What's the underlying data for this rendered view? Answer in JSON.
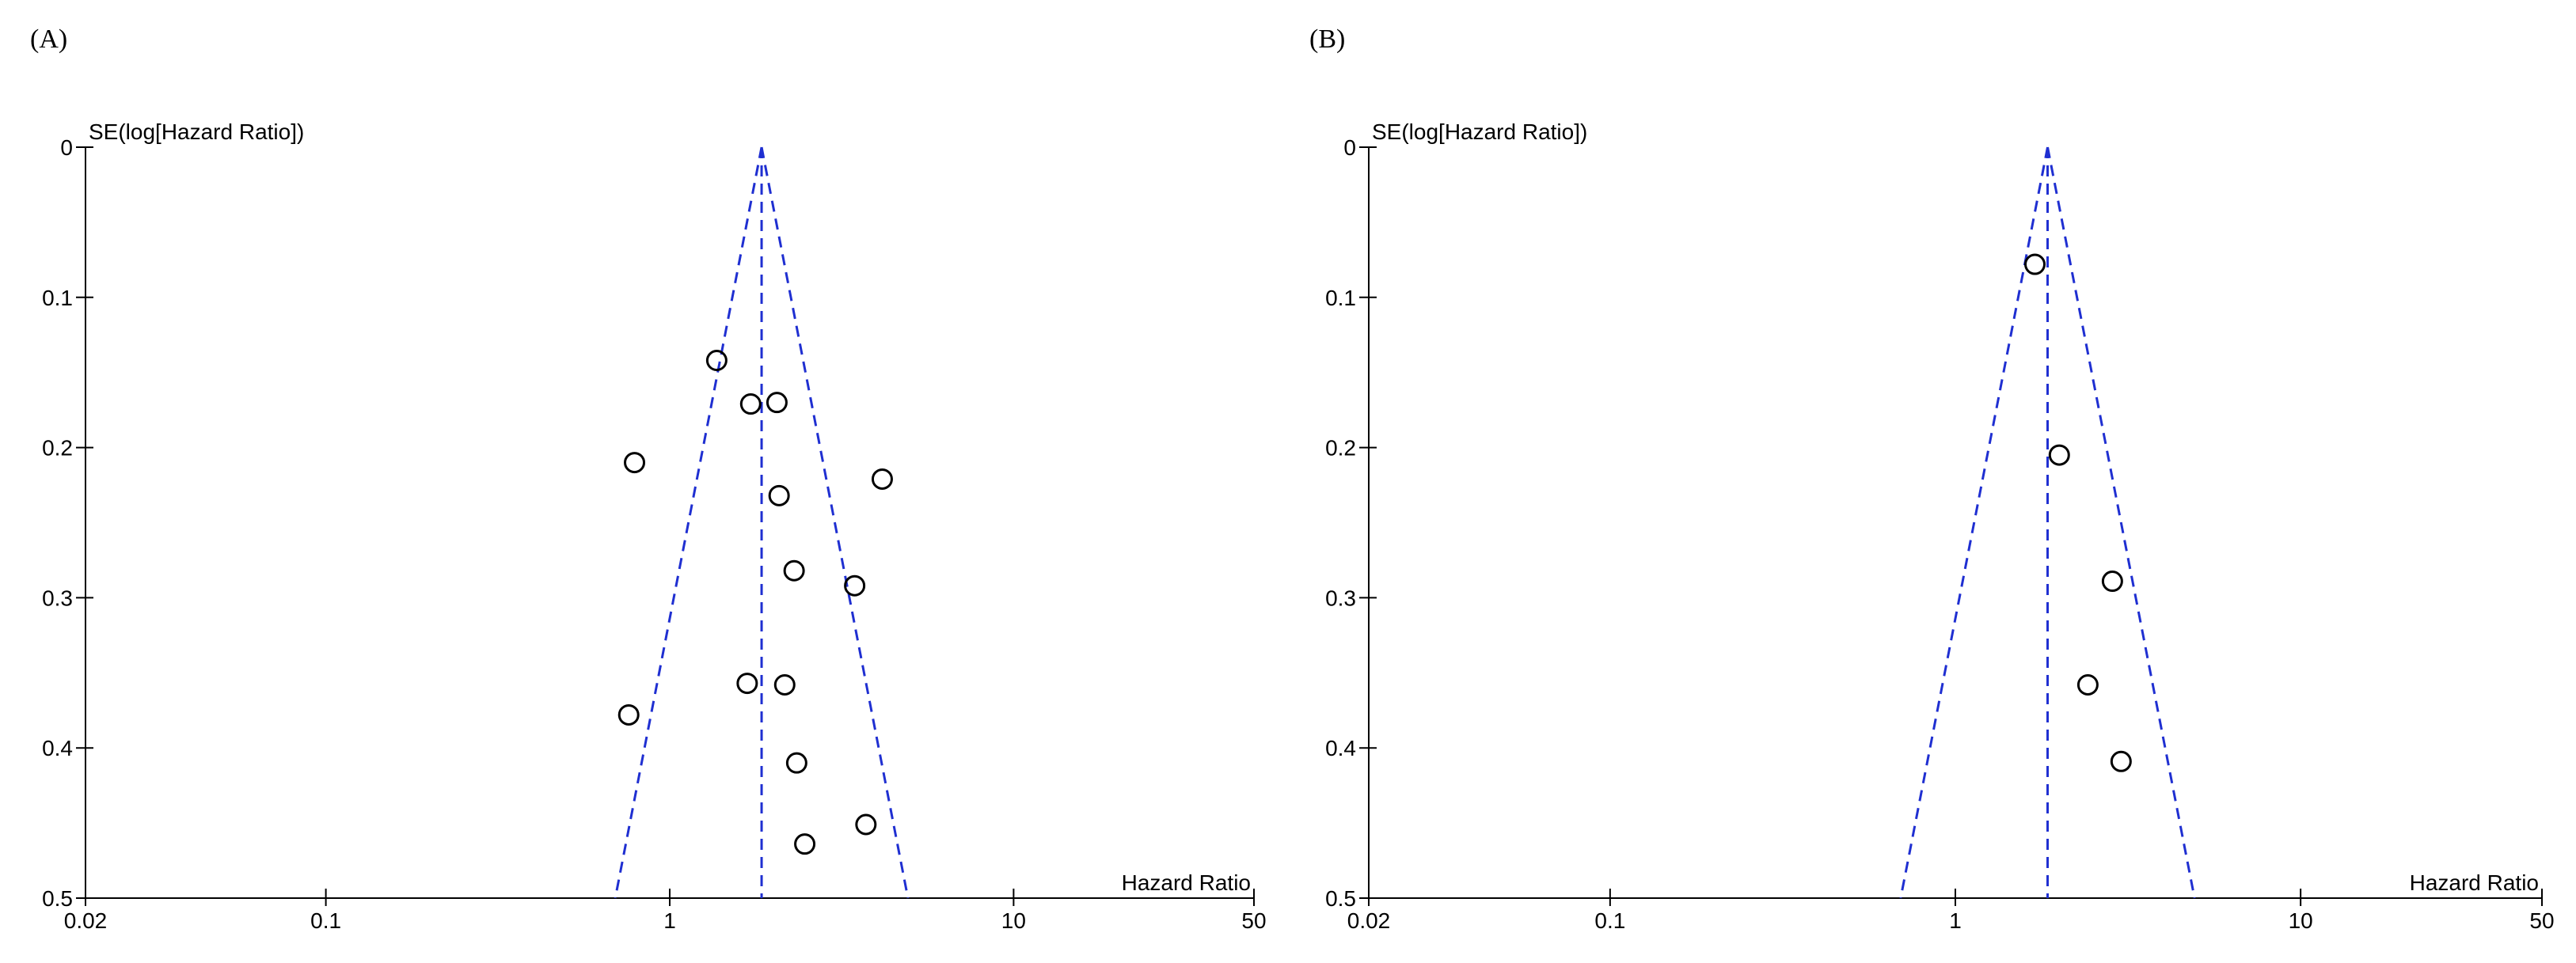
{
  "chart_data": [
    {
      "type": "scatter",
      "panel_label": "(A)",
      "xlabel": "Hazard Ratio",
      "ylabel": "SE(log[Hazard Ratio])",
      "x_scale": "log",
      "xlim": [
        0.02,
        50
      ],
      "ylim": [
        0,
        0.5
      ],
      "y_inverted": true,
      "x_ticks": [
        "0.02",
        "0.1",
        "1",
        "10",
        "50"
      ],
      "y_ticks": [
        "0",
        "0.1",
        "0.2",
        "0.3",
        "0.4",
        "0.5"
      ],
      "pooled_estimate": 1.85,
      "series": [
        {
          "points": [
            {
              "x": 1.37,
              "y": 0.142
            },
            {
              "x": 1.72,
              "y": 0.171
            },
            {
              "x": 2.05,
              "y": 0.17
            },
            {
              "x": 0.79,
              "y": 0.21
            },
            {
              "x": 4.15,
              "y": 0.221
            },
            {
              "x": 2.08,
              "y": 0.232
            },
            {
              "x": 2.3,
              "y": 0.282
            },
            {
              "x": 3.45,
              "y": 0.292
            },
            {
              "x": 1.68,
              "y": 0.357
            },
            {
              "x": 2.16,
              "y": 0.358
            },
            {
              "x": 0.76,
              "y": 0.378
            },
            {
              "x": 2.34,
              "y": 0.41
            },
            {
              "x": 3.72,
              "y": 0.451
            },
            {
              "x": 2.47,
              "y": 0.464
            }
          ]
        }
      ]
    },
    {
      "type": "scatter",
      "panel_label": "(B)",
      "xlabel": "Hazard Ratio",
      "ylabel": "SE(log[Hazard Ratio])",
      "x_scale": "log",
      "xlim": [
        0.02,
        50
      ],
      "ylim": [
        0,
        0.5
      ],
      "y_inverted": true,
      "x_ticks": [
        "0.02",
        "0.1",
        "1",
        "10",
        "50"
      ],
      "y_ticks": [
        "0",
        "0.1",
        "0.2",
        "0.3",
        "0.4",
        "0.5"
      ],
      "pooled_estimate": 1.85,
      "series": [
        {
          "points": [
            {
              "x": 1.7,
              "y": 0.078
            },
            {
              "x": 2.0,
              "y": 0.205
            },
            {
              "x": 2.85,
              "y": 0.289
            },
            {
              "x": 2.42,
              "y": 0.358
            },
            {
              "x": 3.02,
              "y": 0.409
            }
          ]
        }
      ]
    }
  ]
}
